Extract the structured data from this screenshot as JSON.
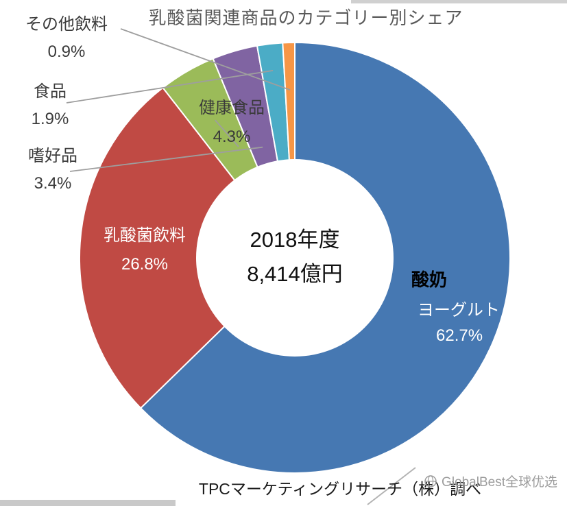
{
  "title": "乳酸菌関連商品のカテゴリー別シェア",
  "center": {
    "line1": "2018年度",
    "line2": "8,414億円"
  },
  "source": "TPCマーケティングリサーチ（株）調べ",
  "watermark": "GlobalBest全球优选",
  "chart_data": {
    "type": "pie",
    "donut": true,
    "title": "乳酸菌関連商品のカテゴリー別シェア",
    "center_label": [
      "2018年度",
      "8,414億円"
    ],
    "start_angle_deg": 0,
    "direction": "clockwise",
    "inner_radius_ratio": 0.46,
    "unit": "%",
    "series": [
      {
        "name": "ヨーグルト",
        "alt_name": "酸奶",
        "value": 62.7,
        "color": "#4678b2",
        "label_position": "inside"
      },
      {
        "name": "乳酸菌飲料",
        "value": 26.8,
        "color": "#c04a44",
        "label_position": "inside"
      },
      {
        "name": "健康食品",
        "value": 4.3,
        "color": "#9bbb59",
        "label_position": "outside"
      },
      {
        "name": "嗜好品",
        "value": 3.4,
        "color": "#8064a2",
        "label_position": "outside"
      },
      {
        "name": "食品",
        "value": 1.9,
        "color": "#4bacc6",
        "label_position": "outside"
      },
      {
        "name": "その他飲料",
        "value": 0.9,
        "color": "#f79646",
        "label_position": "outside"
      }
    ]
  }
}
